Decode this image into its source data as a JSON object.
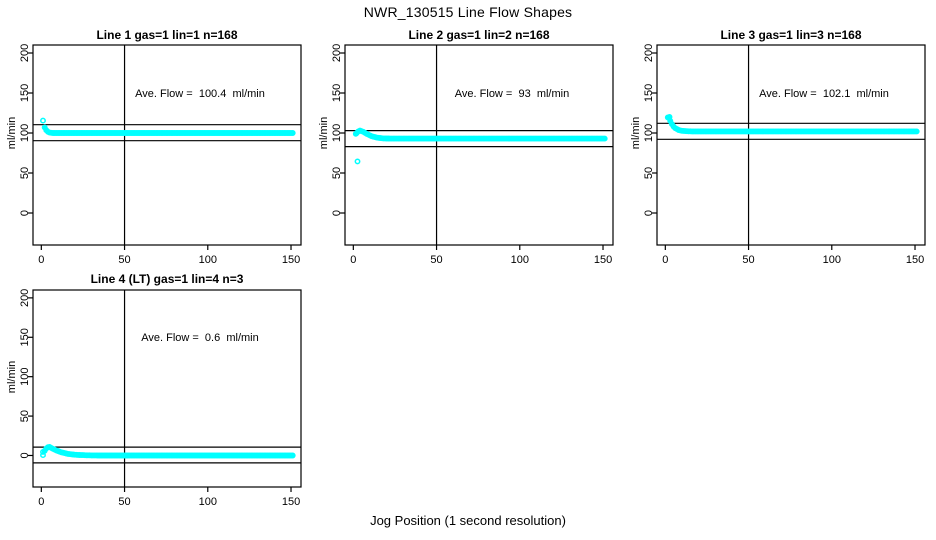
{
  "figure": {
    "background": "#FFFFFF",
    "point_color": "#00FFFF",
    "line_color": "#000000"
  },
  "chart_data": {
    "type": "scatter",
    "title": "NWR_130515  Line Flow Shapes",
    "xlabel": "Jog Position (1 second resolution)",
    "ylabel": "ml/min",
    "x_ticks": [
      0,
      50,
      100,
      150
    ],
    "y_ticks": [
      0,
      50,
      100,
      150,
      200
    ],
    "xlim": [
      -5,
      156
    ],
    "ylim": [
      -40,
      210
    ],
    "vline_x": 50,
    "grid": false,
    "legend": "none",
    "point_color": "#00FFFF",
    "panels": [
      {
        "title": "Line 1 gas=1 lin=1 n=168",
        "annotation": "Ave. Flow =  100.4  ml/min",
        "ave_flow": 100.4,
        "ylabel": "ml/min",
        "ref_lines": [
          110.4,
          90.4
        ],
        "leading_points": [
          [
            1,
            115.5
          ]
        ],
        "band": [
          [
            2,
            107
          ],
          [
            3,
            103.5
          ],
          [
            4,
            101.5
          ],
          [
            5,
            100.5
          ],
          [
            7,
            100
          ],
          [
            151,
            100
          ]
        ]
      },
      {
        "title": "Line 2 gas=1 lin=2 n=168",
        "annotation": "Ave. Flow =  93  ml/min",
        "ave_flow": 93,
        "ylabel": "ml/min",
        "ref_lines": [
          103,
          83
        ],
        "leading_points": [
          [
            1.5,
            99
          ],
          [
            2.5,
            64.5
          ]
        ],
        "band": [
          [
            2,
            100
          ],
          [
            3,
            102
          ],
          [
            4,
            103
          ],
          [
            6,
            101.5
          ],
          [
            8,
            99
          ],
          [
            11,
            96
          ],
          [
            14,
            94.3
          ],
          [
            18,
            93.3
          ],
          [
            23,
            93
          ],
          [
            151,
            93
          ]
        ]
      },
      {
        "title": "Line 3 gas=1 lin=3 n=168",
        "annotation": "Ave. Flow =  102.1  ml/min",
        "ave_flow": 102.1,
        "ylabel": "ml/min",
        "ref_lines": [
          112.1,
          92.1
        ],
        "leading_points": [
          [
            1.5,
            119.5
          ],
          [
            2.5,
            120
          ]
        ],
        "band": [
          [
            2,
            119
          ],
          [
            3,
            115
          ],
          [
            4,
            111
          ],
          [
            5,
            108
          ],
          [
            6,
            106
          ],
          [
            8,
            103.8
          ],
          [
            10,
            102.8
          ],
          [
            13,
            102.2
          ],
          [
            17,
            102
          ],
          [
            151,
            102
          ]
        ]
      },
      {
        "title": "Line 4 (LT) gas=1 lin=4 n=3",
        "annotation": "Ave. Flow =  0.6  ml/min",
        "ave_flow": 0.6,
        "ylabel": "ml/min",
        "ref_lines": [
          10.6,
          -9.4
        ],
        "leading_points": [
          [
            1,
            0.5
          ],
          [
            1,
            4.5
          ]
        ],
        "band": [
          [
            2,
            6
          ],
          [
            3,
            9
          ],
          [
            4,
            10.5
          ],
          [
            5,
            10.8
          ],
          [
            7,
            8.5
          ],
          [
            9,
            6.5
          ],
          [
            12,
            4
          ],
          [
            16,
            2
          ],
          [
            21,
            0.8
          ],
          [
            28,
            0.2
          ],
          [
            35,
            0
          ],
          [
            151,
            0
          ]
        ]
      }
    ]
  }
}
